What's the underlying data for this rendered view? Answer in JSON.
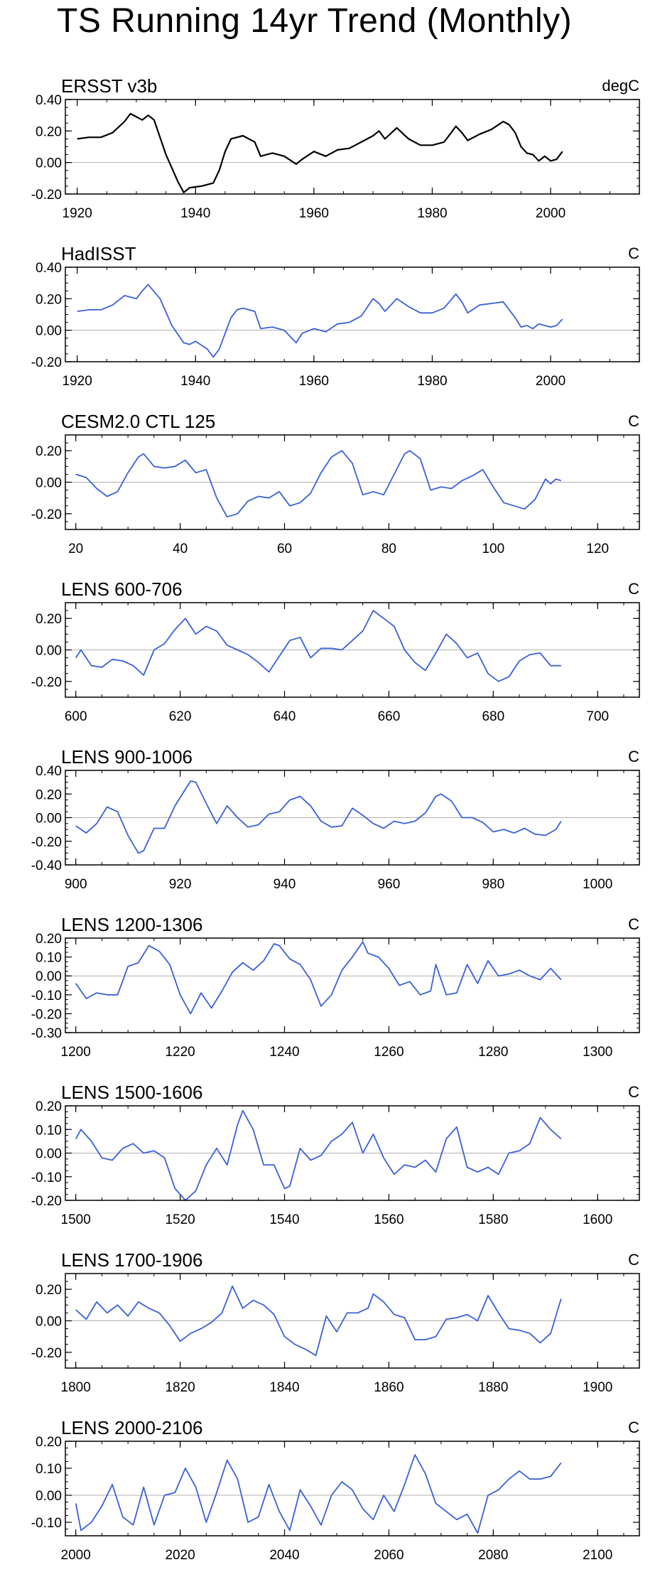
{
  "title": "TS Running 14yr Trend (Monthly)",
  "chart_data": [
    {
      "type": "line",
      "title": "ERSST v3b",
      "units": "degC",
      "color": "#000000",
      "xlim": [
        1918,
        2015
      ],
      "ylim": [
        -0.2,
        0.4
      ],
      "xticks": [
        1920,
        1940,
        1960,
        1980,
        2000
      ],
      "xtick_labels": [
        "1920",
        "1940",
        "1960",
        "1980",
        "2000"
      ],
      "yticks": [
        -0.2,
        0.0,
        0.2,
        0.4
      ],
      "ytick_labels": [
        "-0.20",
        "0.00",
        "0.20",
        "0.40"
      ],
      "x": [
        1920,
        1922,
        1924,
        1926,
        1928,
        1929,
        1930,
        1931,
        1932,
        1933,
        1935,
        1937,
        1938,
        1939,
        1941,
        1943,
        1944,
        1945,
        1946,
        1948,
        1949,
        1950,
        1951,
        1953,
        1955,
        1957,
        1958,
        1960,
        1962,
        1964,
        1966,
        1968,
        1970,
        1971,
        1972,
        1974,
        1976,
        1978,
        1980,
        1982,
        1984,
        1985,
        1986,
        1988,
        1990,
        1992,
        1993,
        1994,
        1995,
        1996,
        1997,
        1998,
        1999,
        2000,
        2001,
        2002
      ],
      "y": [
        0.15,
        0.16,
        0.16,
        0.19,
        0.26,
        0.31,
        0.29,
        0.27,
        0.3,
        0.27,
        0.05,
        -0.12,
        -0.19,
        -0.16,
        -0.15,
        -0.13,
        -0.05,
        0.07,
        0.15,
        0.17,
        0.15,
        0.13,
        0.04,
        0.06,
        0.04,
        -0.01,
        0.02,
        0.07,
        0.04,
        0.08,
        0.09,
        0.13,
        0.17,
        0.2,
        0.15,
        0.22,
        0.15,
        0.11,
        0.11,
        0.13,
        0.23,
        0.19,
        0.14,
        0.18,
        0.21,
        0.26,
        0.24,
        0.19,
        0.1,
        0.06,
        0.05,
        0.01,
        0.04,
        0.01,
        0.02,
        0.07
      ]
    },
    {
      "type": "line",
      "title": "HadISST",
      "units": "C",
      "color": "#3a60d8",
      "xlim": [
        1918,
        2015
      ],
      "ylim": [
        -0.2,
        0.4
      ],
      "xticks": [
        1920,
        1940,
        1960,
        1980,
        2000
      ],
      "xtick_labels": [
        "1920",
        "1940",
        "1960",
        "1980",
        "2000"
      ],
      "yticks": [
        -0.2,
        0.0,
        0.2,
        0.4
      ],
      "ytick_labels": [
        "-0.20",
        "0.00",
        "0.20",
        "0.40"
      ],
      "x": [
        1920,
        1922,
        1924,
        1926,
        1928,
        1930,
        1931,
        1932,
        1934,
        1936,
        1938,
        1939,
        1940,
        1942,
        1943,
        1944,
        1946,
        1947,
        1948,
        1950,
        1951,
        1953,
        1955,
        1957,
        1958,
        1960,
        1962,
        1964,
        1966,
        1968,
        1970,
        1971,
        1972,
        1974,
        1976,
        1978,
        1980,
        1982,
        1984,
        1985,
        1986,
        1988,
        1990,
        1992,
        1994,
        1995,
        1996,
        1997,
        1998,
        1999,
        2000,
        2001,
        2002
      ],
      "y": [
        0.12,
        0.13,
        0.13,
        0.16,
        0.22,
        0.2,
        0.25,
        0.29,
        0.2,
        0.03,
        -0.08,
        -0.09,
        -0.07,
        -0.12,
        -0.17,
        -0.12,
        0.08,
        0.13,
        0.14,
        0.12,
        0.01,
        0.02,
        0.0,
        -0.08,
        -0.02,
        0.01,
        -0.01,
        0.04,
        0.05,
        0.09,
        0.2,
        0.17,
        0.12,
        0.2,
        0.15,
        0.11,
        0.11,
        0.14,
        0.23,
        0.18,
        0.11,
        0.16,
        0.17,
        0.18,
        0.08,
        0.02,
        0.03,
        0.01,
        0.04,
        0.03,
        0.02,
        0.03,
        0.07
      ]
    },
    {
      "type": "line",
      "title": "CESM2.0 CTL 125",
      "units": "C",
      "color": "#3a60d8",
      "xlim": [
        18,
        128
      ],
      "ylim": [
        -0.3,
        0.3
      ],
      "xticks": [
        20,
        40,
        60,
        80,
        100,
        120
      ],
      "xtick_labels": [
        "20",
        "40",
        "60",
        "80",
        "100",
        "120"
      ],
      "yticks": [
        -0.2,
        0.0,
        0.2
      ],
      "ytick_labels": [
        "-0.20",
        "0.00",
        "0.20"
      ],
      "x": [
        20,
        22,
        24,
        26,
        28,
        30,
        32,
        33,
        35,
        37,
        39,
        41,
        43,
        45,
        47,
        49,
        51,
        53,
        55,
        57,
        59,
        61,
        63,
        65,
        67,
        69,
        71,
        73,
        75,
        77,
        79,
        81,
        83,
        84,
        86,
        88,
        90,
        92,
        94,
        96,
        98,
        100,
        102,
        104,
        106,
        108,
        110,
        111,
        112,
        113
      ],
      "y": [
        0.05,
        0.03,
        -0.04,
        -0.09,
        -0.06,
        0.06,
        0.16,
        0.18,
        0.1,
        0.09,
        0.1,
        0.14,
        0.06,
        0.08,
        -0.1,
        -0.22,
        -0.2,
        -0.12,
        -0.09,
        -0.1,
        -0.06,
        -0.15,
        -0.13,
        -0.07,
        0.06,
        0.16,
        0.2,
        0.12,
        -0.08,
        -0.06,
        -0.08,
        0.05,
        0.18,
        0.2,
        0.15,
        -0.05,
        -0.03,
        -0.04,
        0.01,
        0.04,
        0.08,
        -0.03,
        -0.13,
        -0.15,
        -0.17,
        -0.11,
        0.02,
        -0.01,
        0.02,
        0.01
      ]
    },
    {
      "type": "line",
      "title": "LENS 600-706",
      "units": "C",
      "color": "#3a60d8",
      "xlim": [
        598,
        708
      ],
      "ylim": [
        -0.3,
        0.3
      ],
      "xticks": [
        600,
        620,
        640,
        660,
        680,
        700
      ],
      "xtick_labels": [
        "600",
        "620",
        "640",
        "660",
        "680",
        "700"
      ],
      "yticks": [
        -0.2,
        0.0,
        0.2
      ],
      "ytick_labels": [
        "-0.20",
        "0.00",
        "0.20"
      ],
      "x": [
        600,
        601,
        603,
        605,
        607,
        609,
        611,
        613,
        615,
        617,
        619,
        621,
        623,
        625,
        627,
        629,
        631,
        633,
        635,
        637,
        639,
        641,
        643,
        645,
        647,
        649,
        651,
        653,
        655,
        657,
        659,
        661,
        663,
        665,
        667,
        669,
        671,
        673,
        675,
        677,
        679,
        681,
        683,
        685,
        687,
        689,
        691,
        693
      ],
      "y": [
        -0.05,
        0.0,
        -0.1,
        -0.11,
        -0.06,
        -0.07,
        -0.1,
        -0.16,
        0.0,
        0.04,
        0.13,
        0.2,
        0.1,
        0.15,
        0.12,
        0.03,
        0.0,
        -0.03,
        -0.08,
        -0.14,
        -0.04,
        0.06,
        0.08,
        -0.05,
        0.01,
        0.01,
        0.0,
        0.06,
        0.12,
        0.25,
        0.2,
        0.15,
        0.0,
        -0.08,
        -0.13,
        -0.02,
        0.1,
        0.04,
        -0.05,
        -0.02,
        -0.15,
        -0.2,
        -0.17,
        -0.07,
        -0.03,
        -0.02,
        -0.1,
        -0.1
      ]
    },
    {
      "type": "line",
      "title": "LENS 900-1006",
      "units": "C",
      "color": "#3a60d8",
      "xlim": [
        898,
        1008
      ],
      "ylim": [
        -0.4,
        0.4
      ],
      "xticks": [
        900,
        920,
        940,
        960,
        980,
        1000
      ],
      "xtick_labels": [
        "900",
        "920",
        "940",
        "960",
        "980",
        "1000"
      ],
      "yticks": [
        -0.4,
        -0.2,
        0.0,
        0.2,
        0.4
      ],
      "ytick_labels": [
        "-0.40",
        "-0.20",
        "0.00",
        "0.20",
        "0.40"
      ],
      "x": [
        900,
        902,
        904,
        906,
        908,
        910,
        912,
        913,
        915,
        917,
        919,
        921,
        922,
        923,
        925,
        927,
        929,
        931,
        933,
        935,
        937,
        939,
        941,
        943,
        945,
        947,
        949,
        951,
        953,
        955,
        957,
        959,
        961,
        963,
        965,
        967,
        969,
        970,
        972,
        974,
        976,
        978,
        980,
        982,
        984,
        986,
        988,
        990,
        992,
        993
      ],
      "y": [
        -0.07,
        -0.13,
        -0.05,
        0.09,
        0.05,
        -0.15,
        -0.3,
        -0.28,
        -0.09,
        -0.09,
        0.1,
        0.24,
        0.31,
        0.3,
        0.12,
        -0.05,
        0.1,
        0.0,
        -0.08,
        -0.06,
        0.03,
        0.05,
        0.15,
        0.18,
        0.1,
        -0.03,
        -0.08,
        -0.07,
        0.08,
        0.02,
        -0.05,
        -0.09,
        -0.03,
        -0.05,
        -0.03,
        0.04,
        0.18,
        0.2,
        0.14,
        0.0,
        0.0,
        -0.04,
        -0.12,
        -0.1,
        -0.13,
        -0.09,
        -0.14,
        -0.15,
        -0.1,
        -0.03
      ]
    },
    {
      "type": "line",
      "title": "LENS 1200-1306",
      "units": "C",
      "color": "#3a60d8",
      "xlim": [
        1198,
        1308
      ],
      "ylim": [
        -0.3,
        0.2
      ],
      "xticks": [
        1200,
        1220,
        1240,
        1260,
        1280,
        1300
      ],
      "xtick_labels": [
        "1200",
        "1220",
        "1240",
        "1260",
        "1280",
        "1300"
      ],
      "yticks": [
        -0.3,
        -0.2,
        -0.1,
        0.0,
        0.1,
        0.2
      ],
      "ytick_labels": [
        "-0.30",
        "-0.20",
        "-0.10",
        "0.00",
        "0.10",
        "0.20"
      ],
      "x": [
        1200,
        1202,
        1204,
        1206,
        1208,
        1210,
        1212,
        1214,
        1216,
        1218,
        1220,
        1222,
        1224,
        1226,
        1228,
        1230,
        1232,
        1234,
        1236,
        1238,
        1239,
        1241,
        1243,
        1245,
        1247,
        1249,
        1251,
        1253,
        1255,
        1256,
        1258,
        1260,
        1262,
        1264,
        1266,
        1268,
        1269,
        1271,
        1273,
        1275,
        1277,
        1279,
        1281,
        1283,
        1285,
        1287,
        1289,
        1291,
        1293
      ],
      "y": [
        -0.04,
        -0.12,
        -0.09,
        -0.1,
        -0.1,
        0.05,
        0.07,
        0.16,
        0.13,
        0.06,
        -0.1,
        -0.2,
        -0.09,
        -0.17,
        -0.08,
        0.02,
        0.07,
        0.03,
        0.08,
        0.17,
        0.16,
        0.09,
        0.06,
        -0.02,
        -0.16,
        -0.1,
        0.03,
        0.1,
        0.18,
        0.12,
        0.1,
        0.04,
        -0.05,
        -0.03,
        -0.1,
        -0.08,
        0.06,
        -0.1,
        -0.09,
        0.06,
        -0.04,
        0.08,
        0.0,
        0.01,
        0.03,
        0.0,
        -0.02,
        0.04,
        -0.02
      ]
    },
    {
      "type": "line",
      "title": "LENS 1500-1606",
      "units": "C",
      "color": "#3a60d8",
      "xlim": [
        1498,
        1608
      ],
      "ylim": [
        -0.2,
        0.2
      ],
      "xticks": [
        1500,
        1520,
        1540,
        1560,
        1580,
        1600
      ],
      "xtick_labels": [
        "1500",
        "1520",
        "1540",
        "1560",
        "1580",
        "1600"
      ],
      "yticks": [
        -0.2,
        -0.1,
        0.0,
        0.1,
        0.2
      ],
      "ytick_labels": [
        "-0.20",
        "-0.10",
        "0.00",
        "0.10",
        "0.20"
      ],
      "x": [
        1500,
        1501,
        1503,
        1505,
        1507,
        1509,
        1511,
        1513,
        1515,
        1517,
        1519,
        1521,
        1523,
        1525,
        1527,
        1529,
        1531,
        1532,
        1534,
        1536,
        1538,
        1540,
        1541,
        1543,
        1545,
        1547,
        1549,
        1551,
        1553,
        1555,
        1557,
        1559,
        1561,
        1563,
        1565,
        1567,
        1569,
        1571,
        1573,
        1575,
        1577,
        1579,
        1581,
        1583,
        1585,
        1587,
        1589,
        1591,
        1593
      ],
      "y": [
        0.06,
        0.1,
        0.05,
        -0.02,
        -0.03,
        0.02,
        0.04,
        0.0,
        0.01,
        -0.02,
        -0.15,
        -0.2,
        -0.16,
        -0.05,
        0.02,
        -0.05,
        0.12,
        0.18,
        0.1,
        -0.05,
        -0.05,
        -0.15,
        -0.14,
        0.02,
        -0.03,
        -0.01,
        0.05,
        0.08,
        0.13,
        0.0,
        0.08,
        -0.02,
        -0.09,
        -0.05,
        -0.06,
        -0.03,
        -0.08,
        0.06,
        0.11,
        -0.06,
        -0.08,
        -0.06,
        -0.09,
        0.0,
        0.01,
        0.04,
        0.15,
        0.1,
        0.06
      ]
    },
    {
      "type": "line",
      "title": "LENS 1700-1906",
      "units": "C",
      "color": "#3a60d8",
      "xlim": [
        1798,
        1908
      ],
      "ylim": [
        -0.3,
        0.3
      ],
      "xticks": [
        1800,
        1820,
        1840,
        1860,
        1880,
        1900
      ],
      "xtick_labels": [
        "1800",
        "1820",
        "1840",
        "1860",
        "1880",
        "1900"
      ],
      "yticks": [
        -0.2,
        0.0,
        0.2
      ],
      "ytick_labels": [
        "-0.20",
        "0.00",
        "0.20"
      ],
      "x": [
        1800,
        1802,
        1804,
        1806,
        1808,
        1810,
        1812,
        1814,
        1816,
        1818,
        1820,
        1822,
        1824,
        1826,
        1828,
        1830,
        1832,
        1834,
        1836,
        1838,
        1840,
        1842,
        1844,
        1846,
        1848,
        1850,
        1852,
        1854,
        1856,
        1857,
        1859,
        1861,
        1863,
        1865,
        1867,
        1869,
        1871,
        1873,
        1875,
        1877,
        1879,
        1881,
        1883,
        1885,
        1887,
        1889,
        1891,
        1893
      ],
      "y": [
        0.07,
        0.01,
        0.12,
        0.05,
        0.1,
        0.03,
        0.12,
        0.08,
        0.05,
        -0.03,
        -0.13,
        -0.08,
        -0.05,
        -0.01,
        0.05,
        0.22,
        0.08,
        0.13,
        0.1,
        0.04,
        -0.1,
        -0.15,
        -0.18,
        -0.22,
        0.03,
        -0.07,
        0.05,
        0.05,
        0.08,
        0.17,
        0.12,
        0.04,
        0.02,
        -0.12,
        -0.12,
        -0.1,
        0.01,
        0.02,
        0.04,
        0.0,
        0.16,
        0.05,
        -0.05,
        -0.06,
        -0.08,
        -0.14,
        -0.08,
        0.14
      ]
    },
    {
      "type": "line",
      "title": "LENS 2000-2106",
      "units": "C",
      "color": "#3a60d8",
      "xlim": [
        1998,
        2108
      ],
      "ylim": [
        -0.15,
        0.2
      ],
      "xticks": [
        2000,
        2020,
        2040,
        2060,
        2080,
        2100
      ],
      "xtick_labels": [
        "2000",
        "2020",
        "2040",
        "2060",
        "2080",
        "2100"
      ],
      "yticks": [
        -0.1,
        0.0,
        0.1,
        0.2
      ],
      "ytick_labels": [
        "-0.10",
        "0.00",
        "0.10",
        "0.20"
      ],
      "x": [
        2000,
        2001,
        2003,
        2005,
        2007,
        2009,
        2011,
        2013,
        2015,
        2017,
        2019,
        2021,
        2023,
        2025,
        2027,
        2029,
        2031,
        2033,
        2035,
        2037,
        2039,
        2041,
        2043,
        2045,
        2047,
        2049,
        2051,
        2053,
        2055,
        2057,
        2059,
        2061,
        2063,
        2065,
        2067,
        2069,
        2071,
        2073,
        2075,
        2077,
        2079,
        2081,
        2083,
        2085,
        2087,
        2089,
        2091,
        2093
      ],
      "y": [
        -0.03,
        -0.13,
        -0.1,
        -0.04,
        0.04,
        -0.08,
        -0.11,
        0.03,
        -0.11,
        0.0,
        0.01,
        0.1,
        0.03,
        -0.1,
        0.01,
        0.13,
        0.06,
        -0.1,
        -0.08,
        0.04,
        -0.06,
        -0.13,
        0.02,
        -0.04,
        -0.11,
        0.0,
        0.05,
        0.02,
        -0.05,
        -0.09,
        0.0,
        -0.06,
        0.04,
        0.15,
        0.08,
        -0.03,
        -0.06,
        -0.09,
        -0.07,
        -0.14,
        0.0,
        0.02,
        0.06,
        0.09,
        0.06,
        0.06,
        0.07,
        0.12
      ]
    }
  ]
}
